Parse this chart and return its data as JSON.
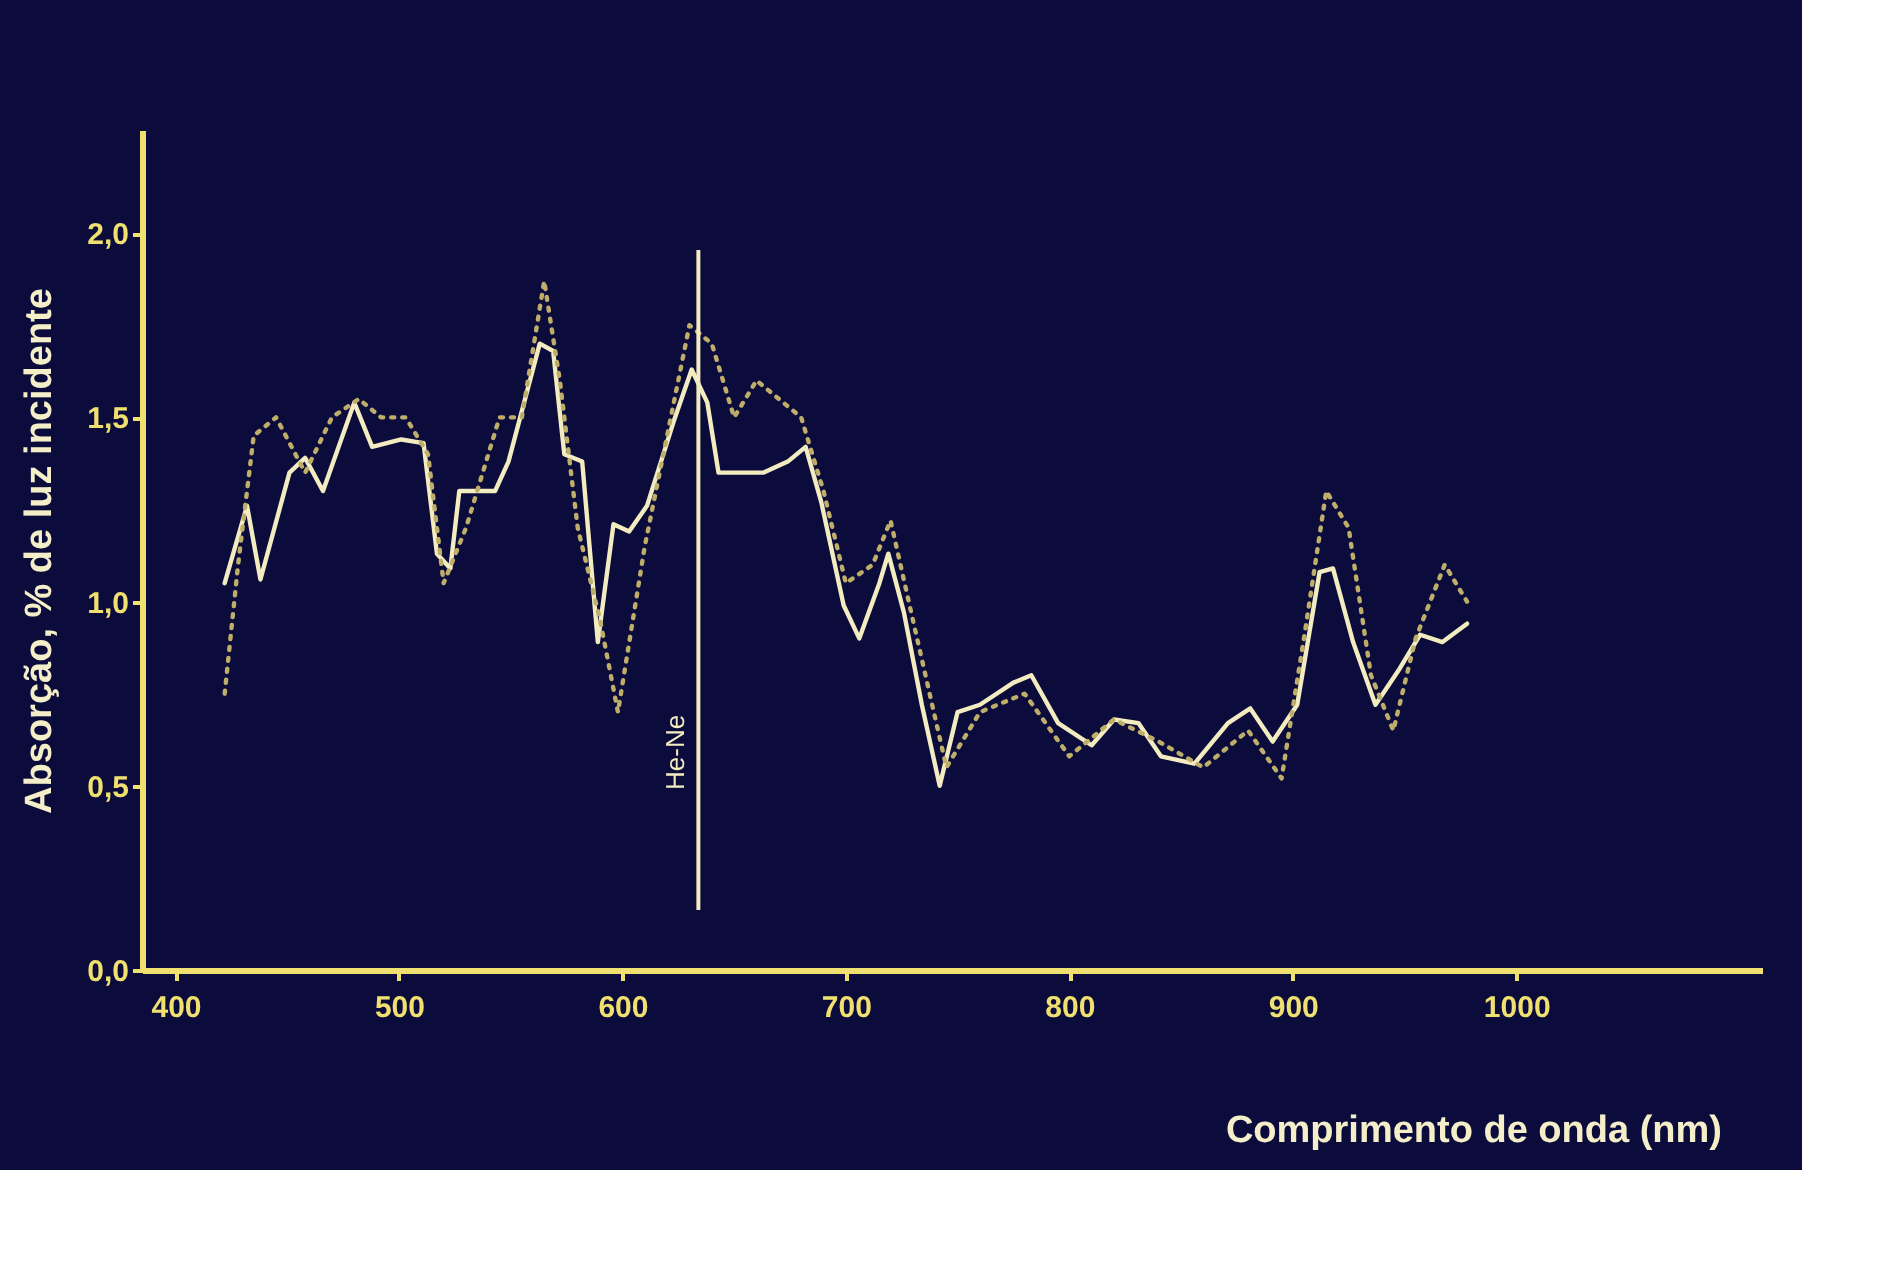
{
  "chart_data": {
    "type": "line",
    "xlabel": "Comprimento de onda (nm)",
    "ylabel": "Absorção, % de luz incidente",
    "xlim": [
      385,
      1110
    ],
    "ylim": [
      0,
      2.28
    ],
    "xticks": [
      400,
      500,
      600,
      700,
      800,
      900,
      1000
    ],
    "yticks": [
      {
        "value": 0,
        "label": "0,0"
      },
      {
        "value": 0.5,
        "label": "0,5"
      },
      {
        "value": 1,
        "label": "1,0"
      },
      {
        "value": 1.5,
        "label": "1,5"
      },
      {
        "value": 2,
        "label": "2,0"
      }
    ],
    "grid": false,
    "marker": "none",
    "series": [
      {
        "color": "#f2ecc0",
        "line_style": "solid",
        "x": [
          422,
          432,
          438,
          451,
          458,
          466,
          480,
          488,
          501,
          511,
          517,
          523,
          527,
          543,
          549,
          563,
          569,
          574,
          582,
          589,
          596,
          603,
          611,
          623,
          631,
          638,
          643,
          663,
          674,
          682,
          689,
          699,
          706,
          715,
          719,
          726,
          734,
          742,
          750,
          760,
          775,
          783,
          795,
          810,
          820,
          831,
          841,
          856,
          871,
          881,
          891,
          902,
          912,
          918,
          927,
          937,
          947,
          957,
          967,
          978
        ],
        "values": [
          1.05,
          1.26,
          1.06,
          1.35,
          1.39,
          1.3,
          1.54,
          1.42,
          1.44,
          1.43,
          1.13,
          1.09,
          1.3,
          1.3,
          1.38,
          1.7,
          1.68,
          1.4,
          1.38,
          0.89,
          1.21,
          1.19,
          1.26,
          1.49,
          1.63,
          1.54,
          1.35,
          1.35,
          1.38,
          1.42,
          1.27,
          0.99,
          0.9,
          1.05,
          1.13,
          0.97,
          0.72,
          0.5,
          0.7,
          0.72,
          0.78,
          0.8,
          0.67,
          0.61,
          0.68,
          0.67,
          0.58,
          0.56,
          0.67,
          0.71,
          0.62,
          0.72,
          1.08,
          1.09,
          0.89,
          0.72,
          0.81,
          0.91,
          0.89,
          0.94
        ]
      },
      {
        "color": "#bfae6a",
        "line_style": "dotted",
        "x": [
          422,
          428,
          435,
          445,
          458,
          470,
          482,
          492,
          503,
          513,
          520,
          530,
          545,
          555,
          565,
          572,
          580,
          590,
          598,
          610,
          620,
          630,
          640,
          650,
          660,
          670,
          680,
          690,
          700,
          712,
          720,
          730,
          745,
          760,
          780,
          800,
          820,
          840,
          860,
          880,
          895,
          905,
          915,
          925,
          935,
          945,
          955,
          968,
          978
        ],
        "values": [
          0.75,
          1.1,
          1.45,
          1.5,
          1.35,
          1.5,
          1.55,
          1.5,
          1.5,
          1.4,
          1.05,
          1.2,
          1.5,
          1.5,
          1.87,
          1.6,
          1.2,
          0.95,
          0.7,
          1.15,
          1.45,
          1.75,
          1.7,
          1.5,
          1.6,
          1.55,
          1.5,
          1.3,
          1.05,
          1.1,
          1.22,
          0.95,
          0.55,
          0.7,
          0.75,
          0.58,
          0.68,
          0.62,
          0.55,
          0.65,
          0.52,
          0.9,
          1.3,
          1.2,
          0.8,
          0.65,
          0.9,
          1.1,
          1.0
        ]
      }
    ],
    "ref_lines": [
      {
        "axis": "x",
        "value": 634,
        "label": "He-Ne",
        "color": "#f2ecc0"
      }
    ]
  }
}
